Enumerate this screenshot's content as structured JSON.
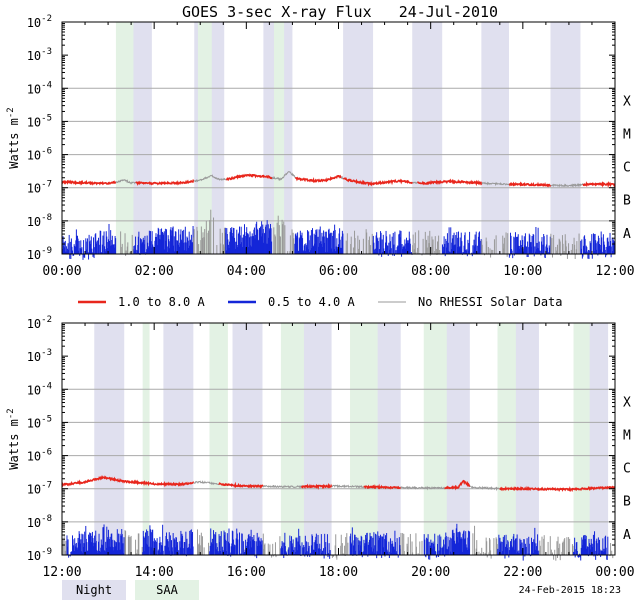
{
  "chart_data": {
    "type": "line",
    "title": "GOES 3-sec X-ray Flux   24-Jul-2010",
    "ylabel": "Watts m",
    "ylabel_sup": "-2",
    "yscale": "log",
    "ylim": [
      1e-09,
      0.01
    ],
    "y_ticks": [
      {
        "base": "10",
        "exp": "-9"
      },
      {
        "base": "10",
        "exp": "-8"
      },
      {
        "base": "10",
        "exp": "-7"
      },
      {
        "base": "10",
        "exp": "-6"
      },
      {
        "base": "10",
        "exp": "-5"
      },
      {
        "base": "10",
        "exp": "-4"
      },
      {
        "base": "10",
        "exp": "-3"
      },
      {
        "base": "10",
        "exp": "-2"
      }
    ],
    "flare_classes": [
      {
        "label": "A",
        "at": 1e-08
      },
      {
        "label": "B",
        "at": 1e-07
      },
      {
        "label": "C",
        "at": 1e-06
      },
      {
        "label": "M",
        "at": 1e-05
      },
      {
        "label": "X",
        "at": 0.0001
      }
    ],
    "grid": "horizontal at class boundaries",
    "legend": {
      "placement": "between panels",
      "items": [
        {
          "label": "1.0 to 8.0 A",
          "color": "#e8261c"
        },
        {
          "label": "0.5 to 4.0 A",
          "color": "#1426d8"
        },
        {
          "label": "No RHESSI Solar Data",
          "color": "#999999"
        }
      ]
    },
    "shading_legend": [
      {
        "label": "Night",
        "color": "#e0e0ef"
      },
      {
        "label": "SAA",
        "color": "#e3f2e4"
      }
    ],
    "colors": {
      "long": "#e8261c",
      "short": "#1426d8",
      "norhessi": "#999999",
      "night": "#e0e0ef",
      "saa": "#e3f2e4",
      "grid": "#aaaaaa"
    },
    "footer_text": "24-Feb-2015 18:23",
    "panels": [
      {
        "x_unit": "hours",
        "xlim": [
          0,
          12
        ],
        "x_ticks": [
          "00:00",
          "02:00",
          "04:00",
          "06:00",
          "08:00",
          "10:00",
          "12:00"
        ],
        "night": [
          [
            1.33,
            1.95
          ],
          [
            2.87,
            3.52
          ],
          [
            4.37,
            5.0
          ],
          [
            6.1,
            6.75
          ],
          [
            7.6,
            8.25
          ],
          [
            9.1,
            9.7
          ],
          [
            10.6,
            11.25
          ]
        ],
        "saa": [
          [
            1.17,
            1.55
          ],
          [
            2.95,
            3.25
          ],
          [
            4.6,
            4.82
          ]
        ],
        "long_band": [
          [
            0,
            1.5e-07
          ],
          [
            0.5,
            1.4e-07
          ],
          [
            1.0,
            1.35e-07
          ],
          [
            1.2,
            1.5e-07
          ],
          [
            1.35,
            1.7e-07
          ],
          [
            1.5,
            1.4e-07
          ],
          [
            2.0,
            1.35e-07
          ],
          [
            2.6,
            1.4e-07
          ],
          [
            3.0,
            1.7e-07
          ],
          [
            3.25,
            2.3e-07
          ],
          [
            3.4,
            1.8e-07
          ],
          [
            3.6,
            1.8e-07
          ],
          [
            4.0,
            2.4e-07
          ],
          [
            4.4,
            2.2e-07
          ],
          [
            4.75,
            1.8e-07
          ],
          [
            4.92,
            3.1e-07
          ],
          [
            5.1,
            1.9e-07
          ],
          [
            5.5,
            1.6e-07
          ],
          [
            5.75,
            1.7e-07
          ],
          [
            6.0,
            2.2e-07
          ],
          [
            6.2,
            1.7e-07
          ],
          [
            6.7,
            1.3e-07
          ],
          [
            7.3,
            1.6e-07
          ],
          [
            7.8,
            1.35e-07
          ],
          [
            8.4,
            1.55e-07
          ],
          [
            9.0,
            1.4e-07
          ],
          [
            9.5,
            1.3e-07
          ],
          [
            10.0,
            1.25e-07
          ],
          [
            10.5,
            1.2e-07
          ],
          [
            11.0,
            1.15e-07
          ],
          [
            11.5,
            1.3e-07
          ],
          [
            12.0,
            1.25e-07
          ]
        ],
        "long_gaps": [
          [
            1.17,
            1.6
          ],
          [
            2.85,
            3.55
          ],
          [
            4.55,
            5.05
          ],
          [
            6.05,
            6.1
          ],
          [
            7.6,
            7.7
          ],
          [
            9.1,
            9.7
          ],
          [
            10.6,
            11.3
          ]
        ],
        "short_band": [
          [
            0,
            1.8e-09
          ],
          [
            0.6,
            1.6e-09
          ],
          [
            1.2,
            4e-09
          ],
          [
            1.4,
            2e-09
          ],
          [
            2.0,
            2.4e-09
          ],
          [
            2.8,
            3e-09
          ],
          [
            3.25,
            1.2e-08
          ],
          [
            3.4,
            3e-09
          ],
          [
            4.0,
            3.2e-09
          ],
          [
            4.7,
            6e-09
          ],
          [
            4.9,
            3e-09
          ],
          [
            5.5,
            2.4e-09
          ],
          [
            6.2,
            2.6e-09
          ],
          [
            7.0,
            2e-09
          ],
          [
            8.0,
            2.2e-09
          ],
          [
            9.0,
            2e-09
          ],
          [
            10.0,
            1.8e-09
          ],
          [
            11.0,
            1.7e-09
          ],
          [
            12.0,
            1.8e-09
          ]
        ],
        "short_gaps": [
          [
            1.17,
            1.55
          ],
          [
            2.85,
            3.55
          ],
          [
            4.55,
            5.05
          ],
          [
            6.1,
            6.75
          ],
          [
            7.6,
            8.25
          ],
          [
            9.1,
            9.7
          ],
          [
            10.6,
            11.25
          ]
        ]
      },
      {
        "x_unit": "hours",
        "xlim": [
          12,
          24
        ],
        "x_ticks": [
          "12:00",
          "14:00",
          "16:00",
          "18:00",
          "20:00",
          "22:00",
          "00:00"
        ],
        "night": [
          [
            12.7,
            13.35
          ],
          [
            14.2,
            14.85
          ],
          [
            15.7,
            16.35
          ],
          [
            17.2,
            17.85
          ],
          [
            18.7,
            19.35
          ],
          [
            20.2,
            20.85
          ],
          [
            21.7,
            22.35
          ],
          [
            23.2,
            23.85
          ]
        ],
        "saa": [
          [
            13.75,
            13.9
          ],
          [
            15.2,
            15.6
          ],
          [
            16.75,
            17.25
          ],
          [
            18.25,
            18.85
          ],
          [
            19.85,
            20.35
          ],
          [
            21.45,
            21.85
          ],
          [
            23.1,
            23.45
          ]
        ],
        "long_band": [
          [
            12,
            1.3e-07
          ],
          [
            12.5,
            1.6e-07
          ],
          [
            12.9,
            2.2e-07
          ],
          [
            13.3,
            1.7e-07
          ],
          [
            14.0,
            1.4e-07
          ],
          [
            14.6,
            1.35e-07
          ],
          [
            15.0,
            1.6e-07
          ],
          [
            15.6,
            1.3e-07
          ],
          [
            16.0,
            1.2e-07
          ],
          [
            17.0,
            1.15e-07
          ],
          [
            18.0,
            1.2e-07
          ],
          [
            19.0,
            1.1e-07
          ],
          [
            20.0,
            1.05e-07
          ],
          [
            20.6,
            1.1e-07
          ],
          [
            20.7,
            1.7e-07
          ],
          [
            20.9,
            1.1e-07
          ],
          [
            21.5,
            1e-07
          ],
          [
            22.0,
            1e-07
          ],
          [
            23.0,
            9.5e-08
          ],
          [
            24.0,
            1.1e-07
          ]
        ],
        "long_gaps": [
          [
            14.85,
            15.4
          ],
          [
            16.35,
            17.2
          ],
          [
            17.85,
            18.55
          ],
          [
            19.35,
            20.3
          ],
          [
            20.85,
            21.5
          ]
        ],
        "short_band": [
          [
            12,
            2e-09
          ],
          [
            12.7,
            2.4e-09
          ],
          [
            13.0,
            3e-09
          ],
          [
            13.6,
            2.6e-09
          ],
          [
            14.5,
            2.2e-09
          ],
          [
            15.2,
            2.6e-09
          ],
          [
            16.0,
            2e-09
          ],
          [
            17.0,
            2e-09
          ],
          [
            18.0,
            1.8e-09
          ],
          [
            19.0,
            2e-09
          ],
          [
            20.0,
            1.8e-09
          ],
          [
            20.7,
            3e-09
          ],
          [
            21.0,
            1.9e-09
          ],
          [
            22.0,
            1.7e-09
          ],
          [
            23.0,
            1.6e-09
          ],
          [
            24.0,
            1.8e-09
          ]
        ],
        "short_gaps": [
          [
            12.0,
            12.1
          ],
          [
            13.35,
            13.75
          ],
          [
            14.85,
            15.2
          ],
          [
            16.35,
            16.75
          ],
          [
            17.85,
            18.25
          ],
          [
            19.35,
            19.85
          ],
          [
            20.85,
            21.45
          ],
          [
            22.35,
            23.1
          ],
          [
            23.85,
            24.0
          ]
        ]
      }
    ]
  }
}
